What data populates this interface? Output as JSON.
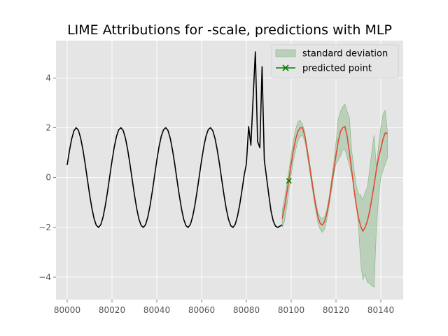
{
  "chart_data": {
    "type": "line",
    "title": "LIME Attributions for -scale, predictions with MLP",
    "xlabel": "",
    "ylabel": "",
    "xlim": [
      79995,
      80150
    ],
    "ylim": [
      -4.9,
      5.5
    ],
    "xticks": [
      80000,
      80020,
      80040,
      80060,
      80080,
      80100,
      80120,
      80140
    ],
    "yticks": [
      -4,
      -2,
      0,
      2,
      4
    ],
    "grid": true,
    "legend_position": "upper right",
    "colors": {
      "history": "#000000",
      "prediction": "#e24a33",
      "band_fill": "#8fbc8f",
      "band_edge": "#7fb47f",
      "predicted_point": "#008000",
      "axes_bg": "#e5e5e5",
      "grid": "#ffffff"
    },
    "series": [
      {
        "name": "history",
        "x": [
          80000,
          80001,
          80002,
          80003,
          80004,
          80005,
          80006,
          80007,
          80008,
          80009,
          80010,
          80011,
          80012,
          80013,
          80014,
          80015,
          80016,
          80017,
          80018,
          80019,
          80020,
          80021,
          80022,
          80023,
          80024,
          80025,
          80026,
          80027,
          80028,
          80029,
          80030,
          80031,
          80032,
          80033,
          80034,
          80035,
          80036,
          80037,
          80038,
          80039,
          80040,
          80041,
          80042,
          80043,
          80044,
          80045,
          80046,
          80047,
          80048,
          80049,
          80050,
          80051,
          80052,
          80053,
          80054,
          80055,
          80056,
          80057,
          80058,
          80059,
          80060,
          80061,
          80062,
          80063,
          80064,
          80065,
          80066,
          80067,
          80068,
          80069,
          80070,
          80071,
          80072,
          80073,
          80074,
          80075,
          80076,
          80077,
          80078,
          80079,
          80080,
          80081,
          80082,
          80083,
          80084,
          80085,
          80086,
          80087,
          80088,
          80089,
          80090,
          80091,
          80092,
          80093,
          80094,
          80095,
          80096
        ],
        "y": [
          0.5,
          1.08,
          1.55,
          1.88,
          2.0,
          1.9,
          1.59,
          1.13,
          0.56,
          -0.06,
          -0.68,
          -1.22,
          -1.65,
          -1.92,
          -2.0,
          -1.89,
          -1.59,
          -1.13,
          -0.57,
          0.05,
          0.67,
          1.22,
          1.65,
          1.92,
          2.0,
          1.89,
          1.58,
          1.12,
          0.55,
          -0.07,
          -0.68,
          -1.23,
          -1.66,
          -1.92,
          -2.0,
          -1.89,
          -1.58,
          -1.12,
          -0.55,
          0.07,
          0.69,
          1.24,
          1.66,
          1.92,
          2.0,
          1.89,
          1.58,
          1.11,
          0.55,
          -0.08,
          -0.69,
          -1.24,
          -1.67,
          -1.93,
          -2.0,
          -1.88,
          -1.57,
          -1.11,
          -0.54,
          0.08,
          0.7,
          1.25,
          1.67,
          1.93,
          2.0,
          1.88,
          1.57,
          1.1,
          0.54,
          -0.09,
          -0.7,
          -1.25,
          -1.67,
          -1.93,
          -2.0,
          -1.88,
          -1.56,
          -1.1,
          -0.53,
          0.09,
          0.55,
          2.05,
          1.3,
          3.2,
          5.05,
          1.45,
          1.2,
          4.45,
          0.7,
          0.0,
          -0.7,
          -1.35,
          -1.75,
          -1.95,
          -2.0,
          -1.95,
          -1.9
        ]
      },
      {
        "name": "prediction",
        "x": [
          80096,
          80097,
          80098,
          80099,
          80100,
          80101,
          80102,
          80103,
          80104,
          80105,
          80106,
          80107,
          80108,
          80109,
          80110,
          80111,
          80112,
          80113,
          80114,
          80115,
          80116,
          80117,
          80118,
          80119,
          80120,
          80121,
          80122,
          80123,
          80124,
          80125,
          80126,
          80127,
          80128,
          80129,
          80130,
          80131,
          80132,
          80133,
          80134,
          80135,
          80136,
          80137,
          80138,
          80139,
          80140,
          80141,
          80142,
          80143
        ],
        "y": [
          -1.65,
          -1.2,
          -0.65,
          -0.05,
          0.55,
          1.1,
          1.55,
          1.85,
          2.0,
          2.0,
          1.7,
          1.2,
          0.6,
          0.0,
          -0.6,
          -1.15,
          -1.6,
          -1.85,
          -1.9,
          -1.75,
          -1.4,
          -0.9,
          -0.3,
          0.3,
          0.9,
          1.45,
          1.85,
          2.0,
          2.05,
          1.65,
          1.0,
          0.3,
          -0.45,
          -1.1,
          -1.6,
          -1.95,
          -2.15,
          -2.0,
          -1.75,
          -1.35,
          -0.85,
          -0.3,
          0.3,
          0.8,
          1.15,
          1.55,
          1.8,
          1.75
        ]
      }
    ],
    "band": {
      "name": "standard deviation",
      "x": [
        80096,
        80097,
        80098,
        80099,
        80100,
        80101,
        80102,
        80103,
        80104,
        80105,
        80106,
        80107,
        80108,
        80109,
        80110,
        80111,
        80112,
        80113,
        80114,
        80115,
        80116,
        80117,
        80118,
        80119,
        80120,
        80121,
        80122,
        80123,
        80124,
        80125,
        80126,
        80127,
        80128,
        80129,
        80130,
        80131,
        80132,
        80133,
        80134,
        80135,
        80136,
        80137,
        80138,
        80139,
        80140,
        80141,
        80142,
        80143
      ],
      "upper": [
        -1.3,
        -0.85,
        -0.3,
        0.3,
        0.9,
        1.5,
        1.95,
        2.25,
        2.3,
        2.15,
        1.85,
        1.3,
        0.75,
        0.15,
        -0.45,
        -1.0,
        -1.4,
        -1.6,
        -1.65,
        -1.55,
        -1.25,
        -0.75,
        -0.05,
        0.6,
        1.4,
        2.35,
        2.65,
        2.85,
        2.95,
        2.65,
        2.4,
        1.1,
        0.35,
        -0.3,
        -0.65,
        -0.7,
        -0.9,
        -0.6,
        -0.4,
        0.3,
        1.05,
        1.7,
        0.4,
        1.3,
        2.0,
        2.55,
        2.7,
        1.8
      ],
      "lower": [
        -2.0,
        -1.75,
        -1.2,
        -0.5,
        0.1,
        0.7,
        1.1,
        1.45,
        1.65,
        1.7,
        1.5,
        1.0,
        0.4,
        -0.2,
        -0.8,
        -1.35,
        -1.85,
        -2.1,
        -2.2,
        -2.05,
        -1.65,
        -1.1,
        -0.5,
        0.1,
        0.55,
        0.7,
        0.85,
        1.1,
        1.15,
        0.8,
        0.5,
        0.1,
        -0.35,
        -1.0,
        -1.9,
        -3.4,
        -4.1,
        -3.9,
        -4.2,
        -4.25,
        -4.35,
        -4.4,
        -2.1,
        -0.8,
        0.0,
        0.3,
        0.55,
        0.8
      ]
    },
    "predicted_point": {
      "name": "predicted point",
      "x": 80099,
      "y": -0.13
    },
    "legend": [
      {
        "label": "standard deviation",
        "kind": "band"
      },
      {
        "label": "predicted point",
        "kind": "point"
      }
    ]
  }
}
